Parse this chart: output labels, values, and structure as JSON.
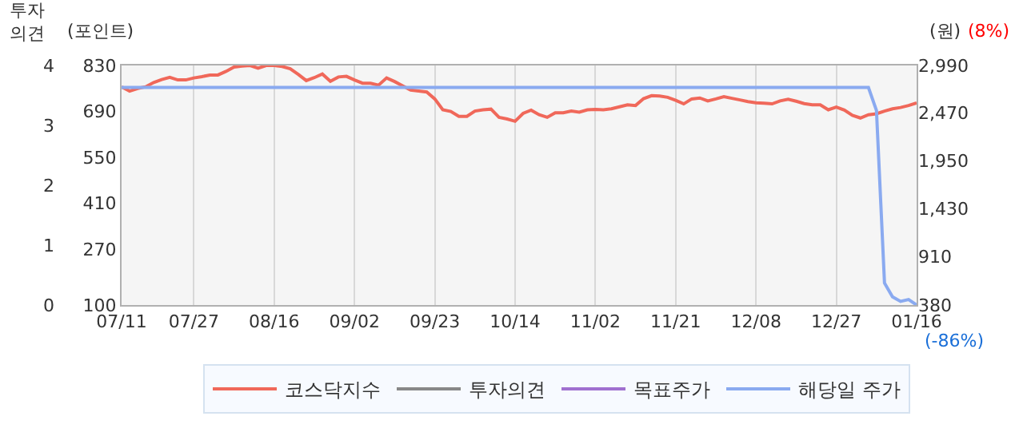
{
  "chart_data": {
    "type": "line",
    "categories": [
      "07/11",
      null,
      null,
      null,
      null,
      null,
      null,
      null,
      null,
      "07/27",
      null,
      null,
      null,
      null,
      null,
      null,
      null,
      null,
      null,
      "08/16",
      null,
      null,
      null,
      null,
      null,
      null,
      null,
      null,
      null,
      "09/02",
      null,
      null,
      null,
      null,
      null,
      null,
      null,
      null,
      null,
      "09/23",
      null,
      null,
      null,
      null,
      null,
      null,
      null,
      null,
      null,
      "10/14",
      null,
      null,
      null,
      null,
      null,
      null,
      null,
      null,
      null,
      "11/02",
      null,
      null,
      null,
      null,
      null,
      null,
      null,
      null,
      null,
      "11/21",
      null,
      null,
      null,
      null,
      null,
      null,
      null,
      null,
      null,
      "12/08",
      null,
      null,
      null,
      null,
      null,
      null,
      null,
      null,
      null,
      "12/27",
      null,
      null,
      null,
      null,
      null,
      null,
      null,
      null,
      null,
      "01/16"
    ],
    "series": [
      {
        "name": "코스닥지수",
        "color": "#f0685a",
        "values": [
          765,
          752,
          760,
          765,
          778,
          787,
          794,
          786,
          786,
          792,
          796,
          801,
          801,
          812,
          825,
          828,
          830,
          822,
          830,
          830,
          827,
          820,
          803,
          784,
          793,
          804,
          782,
          795,
          797,
          786,
          776,
          776,
          770,
          792,
          781,
          768,
          755,
          752,
          749,
          728,
          695,
          690,
          675,
          675,
          691,
          695,
          697,
          672,
          667,
          660,
          684,
          694,
          680,
          672,
          686,
          686,
          691,
          688,
          695,
          696,
          695,
          698,
          704,
          710,
          708,
          729,
          738,
          737,
          733,
          724,
          713,
          728,
          731,
          722,
          728,
          735,
          730,
          725,
          720,
          716,
          715,
          713,
          722,
          727,
          721,
          714,
          710,
          710,
          695,
          703,
          694,
          678,
          670,
          680,
          683,
          691,
          698,
          702,
          708,
          716
        ]
      },
      {
        "name": "투자의견",
        "color": "#888888",
        "axis": "y3",
        "values": [
          null,
          null,
          null,
          null,
          null,
          null,
          null,
          null,
          null,
          null,
          null,
          null,
          null,
          null,
          null,
          null,
          null,
          null,
          null,
          null,
          null,
          null,
          null,
          null,
          null,
          null,
          null,
          null,
          null,
          null,
          null,
          null,
          null,
          null,
          null,
          null,
          null,
          null,
          null,
          null,
          null,
          null,
          null,
          null,
          null,
          null,
          null,
          null,
          null,
          null,
          null,
          null,
          null,
          null,
          null,
          null,
          null,
          null,
          null,
          null,
          null,
          null,
          null,
          null,
          null,
          null,
          null,
          null,
          null,
          null,
          null,
          null,
          null,
          null,
          null,
          null,
          null,
          null,
          null,
          null,
          null,
          null,
          null,
          null,
          null,
          null,
          null,
          null,
          null,
          null,
          null,
          null,
          null,
          null,
          null,
          null,
          null,
          null,
          null,
          null
        ]
      },
      {
        "name": "목표주가",
        "color": "#a070d0",
        "axis": "y2",
        "values": [
          null,
          null,
          null,
          null,
          null,
          null,
          null,
          null,
          null,
          null,
          null,
          null,
          null,
          null,
          null,
          null,
          null,
          null,
          null,
          null,
          null,
          null,
          null,
          null,
          null,
          null,
          null,
          null,
          null,
          null,
          null,
          null,
          null,
          null,
          null,
          null,
          null,
          null,
          null,
          null,
          null,
          null,
          null,
          null,
          null,
          null,
          null,
          null,
          null,
          null,
          null,
          null,
          null,
          null,
          null,
          null,
          null,
          null,
          null,
          null,
          null,
          null,
          null,
          null,
          null,
          null,
          null,
          null,
          null,
          null,
          null,
          null,
          null,
          null,
          null,
          null,
          null,
          null,
          null,
          null,
          null,
          null,
          null,
          null,
          null,
          null,
          null,
          null,
          null,
          null,
          null,
          null,
          null,
          null,
          null,
          null,
          null,
          null,
          null,
          null
        ]
      },
      {
        "name": "해당일 주가",
        "color": "#8aaaf0",
        "axis": "y2",
        "values": [
          2750,
          2750,
          2750,
          2750,
          2750,
          2750,
          2750,
          2750,
          2750,
          2750,
          2750,
          2750,
          2750,
          2750,
          2750,
          2750,
          2750,
          2750,
          2750,
          2750,
          2750,
          2750,
          2750,
          2750,
          2750,
          2750,
          2750,
          2750,
          2750,
          2750,
          2750,
          2750,
          2750,
          2750,
          2750,
          2750,
          2750,
          2750,
          2750,
          2750,
          2750,
          2750,
          2750,
          2750,
          2750,
          2750,
          2750,
          2750,
          2750,
          2750,
          2750,
          2750,
          2750,
          2750,
          2750,
          2750,
          2750,
          2750,
          2750,
          2750,
          2750,
          2750,
          2750,
          2750,
          2750,
          2750,
          2750,
          2750,
          2750,
          2750,
          2750,
          2750,
          2750,
          2750,
          2750,
          2750,
          2750,
          2750,
          2750,
          2750,
          2750,
          2750,
          2750,
          2750,
          2750,
          2750,
          2750,
          2750,
          2750,
          2750,
          2750,
          2750,
          2750,
          2750,
          2500,
          620,
          470,
          420,
          440,
          380
        ]
      }
    ],
    "ylabel": "(포인트)",
    "ylim": [
      100,
      830
    ],
    "yticks": [
      100,
      270,
      410,
      550,
      690,
      830
    ],
    "y2label": "(원)",
    "y2lim": [
      380,
      2990
    ],
    "y2ticks": [
      380,
      910,
      {
        "value": 1430,
        "label": "1,430"
      },
      {
        "value": 1950,
        "label": "1,950"
      },
      {
        "value": 2470,
        "label": "2,470"
      },
      {
        "value": 2990,
        "label": "2,990"
      }
    ],
    "y3label": "투자의견",
    "y3lim": [
      0,
      4
    ],
    "y3ticks": [
      0,
      1,
      2,
      3,
      4
    ],
    "annotations": [
      "(8%)",
      "(-86%)"
    ],
    "grid": "x",
    "legend": "bottom"
  }
}
